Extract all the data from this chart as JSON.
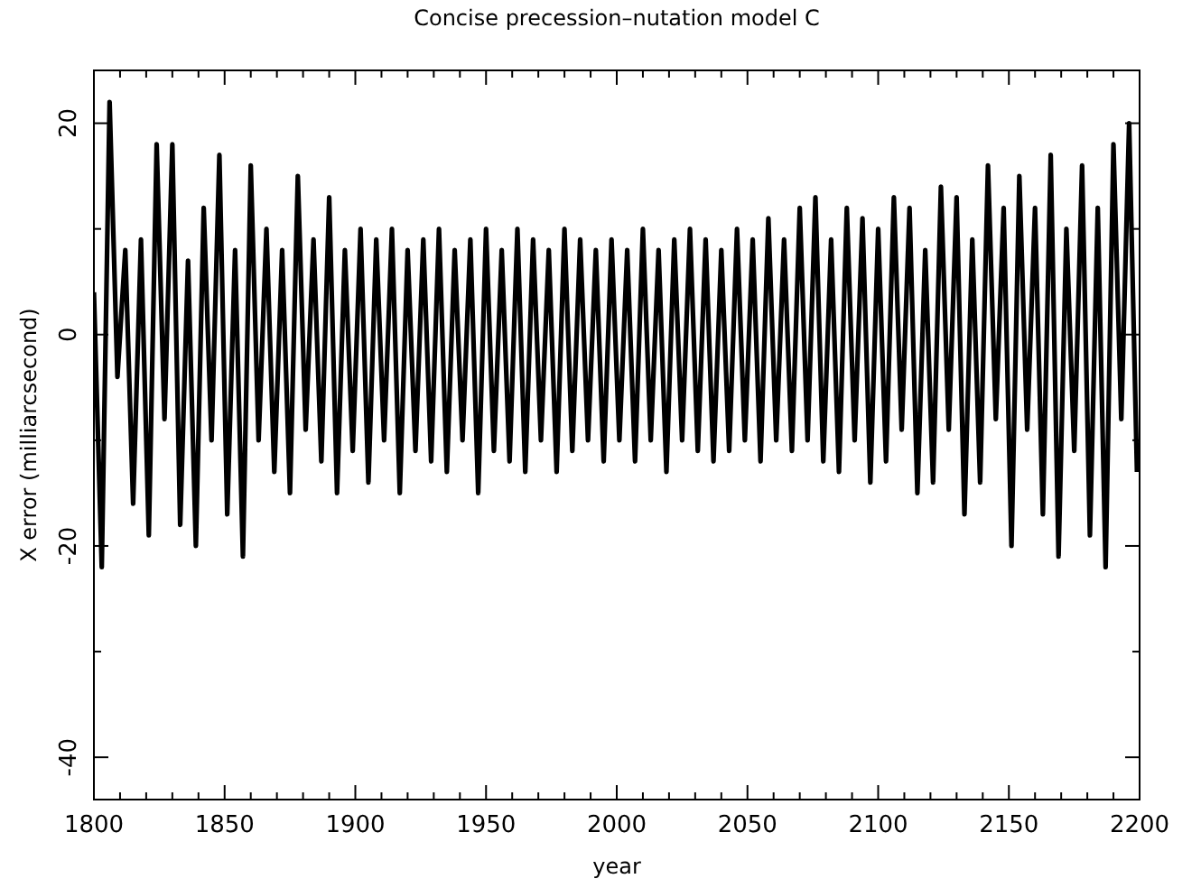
{
  "chart_data": {
    "type": "line",
    "title": "Concise precession–nutation model C",
    "xlabel": "year",
    "ylabel": "X error (milliarcsecond)",
    "xlim": [
      1800,
      2200
    ],
    "xticks": [
      1800,
      {
        "value": 1810,
        "label": null
      },
      {
        "value": 1820,
        "label": null
      },
      {
        "value": 1830,
        "label": null
      },
      {
        "value": 1840,
        "label": null
      },
      1850,
      {
        "value": 1860,
        "label": null
      },
      {
        "value": 1870,
        "label": null
      },
      {
        "value": 1880,
        "label": null
      },
      {
        "value": 1890,
        "label": null
      },
      1900,
      {
        "value": 1910,
        "label": null
      },
      {
        "value": 1920,
        "label": null
      },
      {
        "value": 1930,
        "label": null
      },
      {
        "value": 1940,
        "label": null
      },
      1950,
      {
        "value": 1960,
        "label": null
      },
      {
        "value": 1970,
        "label": null
      },
      {
        "value": 1980,
        "label": null
      },
      {
        "value": 1990,
        "label": null
      },
      2000,
      {
        "value": 2010,
        "label": null
      },
      {
        "value": 2020,
        "label": null
      },
      {
        "value": 2030,
        "label": null
      },
      {
        "value": 2040,
        "label": null
      },
      2050,
      {
        "value": 2060,
        "label": null
      },
      {
        "value": 2070,
        "label": null
      },
      {
        "value": 2080,
        "label": null
      },
      {
        "value": 2090,
        "label": null
      },
      2100,
      {
        "value": 2110,
        "label": null
      },
      {
        "value": 2120,
        "label": null
      },
      {
        "value": 2130,
        "label": null
      },
      {
        "value": 2140,
        "label": null
      },
      2150,
      {
        "value": 2160,
        "label": null
      },
      {
        "value": 2170,
        "label": null
      },
      {
        "value": 2180,
        "label": null
      },
      {
        "value": 2190,
        "label": null
      },
      2200
    ],
    "ylim": [
      -44,
      25
    ],
    "yticks": [
      -40,
      {
        "value": -30,
        "label": null
      },
      -20,
      {
        "value": -10,
        "label": null
      },
      0,
      {
        "value": 10,
        "label": null
      },
      20
    ],
    "grid": false,
    "marker": "none",
    "line_style": "solid",
    "series": [
      {
        "color": "#000000",
        "x": [
          1800,
          1803,
          1806,
          1809,
          1812,
          1815,
          1818,
          1821,
          1824,
          1827,
          1830,
          1833,
          1836,
          1839,
          1842,
          1845,
          1848,
          1851,
          1854,
          1857,
          1860,
          1863,
          1866,
          1869,
          1872,
          1875,
          1878,
          1881,
          1884,
          1887,
          1890,
          1893,
          1896,
          1899,
          1902,
          1905,
          1908,
          1911,
          1914,
          1917,
          1920,
          1923,
          1926,
          1929,
          1932,
          1935,
          1938,
          1941,
          1944,
          1947,
          1950,
          1953,
          1956,
          1959,
          1962,
          1965,
          1968,
          1971,
          1974,
          1977,
          1980,
          1983,
          1986,
          1989,
          1992,
          1995,
          1998,
          2001,
          2004,
          2007,
          2010,
          2013,
          2016,
          2019,
          2022,
          2025,
          2028,
          2031,
          2034,
          2037,
          2040,
          2043,
          2046,
          2049,
          2052,
          2055,
          2058,
          2061,
          2064,
          2067,
          2070,
          2073,
          2076,
          2079,
          2082,
          2085,
          2088,
          2091,
          2094,
          2097,
          2100,
          2103,
          2106,
          2109,
          2112,
          2115,
          2118,
          2121,
          2124,
          2127,
          2130,
          2133,
          2136,
          2139,
          2142,
          2145,
          2148,
          2151,
          2154,
          2157,
          2160,
          2163,
          2166,
          2169,
          2172,
          2175,
          2178,
          2181,
          2184,
          2187,
          2190,
          2193,
          2196,
          2199
        ],
        "values": [
          4,
          -22,
          22,
          -4,
          8,
          -16,
          9,
          -19,
          18,
          -8,
          18,
          -18,
          7,
          -20,
          12,
          -10,
          17,
          -17,
          8,
          -21,
          16,
          -10,
          10,
          -13,
          8,
          -15,
          15,
          -9,
          9,
          -12,
          13,
          -15,
          8,
          -11,
          10,
          -14,
          9,
          -10,
          10,
          -15,
          8,
          -11,
          9,
          -12,
          10,
          -13,
          8,
          -10,
          9,
          -15,
          10,
          -11,
          8,
          -12,
          10,
          -13,
          9,
          -10,
          8,
          -13,
          10,
          -11,
          9,
          -10,
          8,
          -12,
          9,
          -10,
          8,
          -12,
          10,
          -10,
          8,
          -13,
          9,
          -10,
          10,
          -11,
          9,
          -12,
          8,
          -11,
          10,
          -10,
          9,
          -12,
          11,
          -10,
          9,
          -11,
          12,
          -10,
          13,
          -12,
          9,
          -13,
          12,
          -10,
          11,
          -14,
          10,
          -12,
          13,
          -9,
          12,
          -15,
          8,
          -14,
          14,
          -9,
          13,
          -17,
          9,
          -14,
          16,
          -8,
          12,
          -20,
          15,
          -9,
          12,
          -17,
          17,
          -21,
          10,
          -11,
          16,
          -19,
          12,
          -22,
          18,
          -8,
          20,
          -13
        ]
      }
    ]
  }
}
